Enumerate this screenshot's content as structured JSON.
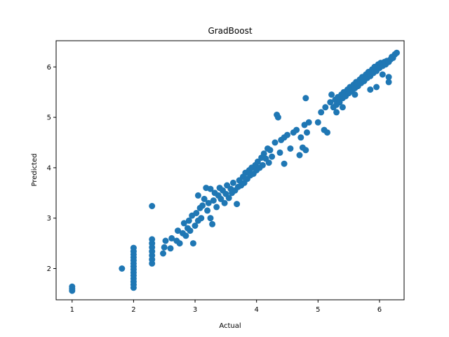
{
  "chart_data": {
    "type": "scatter",
    "title": "GradBoost",
    "xlabel": "Actual",
    "ylabel": "Predicted",
    "xlim": [
      0.74,
      6.4
    ],
    "ylim": [
      1.38,
      6.52
    ],
    "xticks": [
      1,
      2,
      3,
      4,
      5,
      6
    ],
    "yticks": [
      2,
      3,
      4,
      5,
      6
    ],
    "grid": false,
    "point_color": "#1f77b4",
    "series": [
      {
        "points": [
          [
            1.0,
            1.56
          ],
          [
            1.0,
            1.6
          ],
          [
            1.0,
            1.64
          ],
          [
            1.81,
            2.0
          ],
          [
            2.0,
            1.62
          ],
          [
            2.0,
            1.68
          ],
          [
            2.0,
            1.74
          ],
          [
            2.0,
            1.8
          ],
          [
            2.0,
            1.86
          ],
          [
            2.0,
            1.92
          ],
          [
            2.0,
            1.98
          ],
          [
            2.0,
            2.04
          ],
          [
            2.0,
            2.1
          ],
          [
            2.0,
            2.16
          ],
          [
            2.0,
            2.22
          ],
          [
            2.0,
            2.28
          ],
          [
            2.0,
            2.34
          ],
          [
            2.0,
            2.41
          ],
          [
            2.3,
            2.1
          ],
          [
            2.3,
            2.18
          ],
          [
            2.3,
            2.26
          ],
          [
            2.3,
            2.34
          ],
          [
            2.3,
            2.42
          ],
          [
            2.3,
            2.5
          ],
          [
            2.3,
            2.58
          ],
          [
            2.3,
            3.24
          ],
          [
            2.48,
            2.3
          ],
          [
            2.5,
            2.42
          ],
          [
            2.52,
            2.55
          ],
          [
            2.6,
            2.4
          ],
          [
            2.62,
            2.6
          ],
          [
            2.7,
            2.55
          ],
          [
            2.72,
            2.75
          ],
          [
            2.75,
            2.5
          ],
          [
            2.8,
            2.7
          ],
          [
            2.82,
            2.9
          ],
          [
            2.85,
            2.65
          ],
          [
            2.88,
            2.8
          ],
          [
            2.9,
            2.95
          ],
          [
            2.92,
            2.75
          ],
          [
            2.95,
            3.05
          ],
          [
            2.97,
            2.5
          ],
          [
            3.0,
            2.85
          ],
          [
            3.02,
            3.1
          ],
          [
            3.05,
            2.95
          ],
          [
            3.05,
            3.45
          ],
          [
            3.08,
            3.2
          ],
          [
            3.1,
            3.0
          ],
          [
            3.12,
            3.25
          ],
          [
            3.15,
            3.38
          ],
          [
            3.18,
            3.6
          ],
          [
            3.2,
            3.15
          ],
          [
            3.22,
            3.3
          ],
          [
            3.25,
            3.0
          ],
          [
            3.25,
            3.58
          ],
          [
            3.28,
            2.88
          ],
          [
            3.3,
            3.35
          ],
          [
            3.32,
            3.5
          ],
          [
            3.35,
            3.22
          ],
          [
            3.38,
            3.45
          ],
          [
            3.4,
            3.6
          ],
          [
            3.42,
            3.38
          ],
          [
            3.45,
            3.55
          ],
          [
            3.48,
            3.3
          ],
          [
            3.5,
            3.48
          ],
          [
            3.52,
            3.65
          ],
          [
            3.55,
            3.4
          ],
          [
            3.58,
            3.58
          ],
          [
            3.6,
            3.5
          ],
          [
            3.62,
            3.7
          ],
          [
            3.65,
            3.55
          ],
          [
            3.68,
            3.28
          ],
          [
            3.7,
            3.62
          ],
          [
            3.72,
            3.75
          ],
          [
            3.75,
            3.65
          ],
          [
            3.78,
            3.82
          ],
          [
            3.8,
            3.7
          ],
          [
            3.82,
            3.9
          ],
          [
            3.85,
            3.78
          ],
          [
            3.88,
            3.95
          ],
          [
            3.9,
            3.85
          ],
          [
            3.92,
            4.0
          ],
          [
            3.95,
            3.88
          ],
          [
            3.98,
            4.05
          ],
          [
            4.0,
            3.95
          ],
          [
            4.02,
            4.12
          ],
          [
            4.05,
            4.0
          ],
          [
            4.08,
            4.2
          ],
          [
            4.1,
            4.05
          ],
          [
            4.12,
            4.28
          ],
          [
            4.15,
            4.18
          ],
          [
            4.18,
            4.38
          ],
          [
            4.2,
            4.1
          ],
          [
            4.22,
            4.35
          ],
          [
            4.25,
            4.22
          ],
          [
            4.3,
            4.5
          ],
          [
            4.33,
            5.05
          ],
          [
            4.35,
            5.0
          ],
          [
            4.38,
            4.3
          ],
          [
            4.4,
            4.55
          ],
          [
            4.45,
            4.08
          ],
          [
            4.45,
            4.6
          ],
          [
            4.5,
            4.65
          ],
          [
            4.55,
            4.38
          ],
          [
            4.6,
            4.7
          ],
          [
            4.65,
            4.75
          ],
          [
            4.7,
            4.25
          ],
          [
            4.72,
            4.6
          ],
          [
            4.75,
            4.4
          ],
          [
            4.78,
            4.85
          ],
          [
            4.8,
            5.38
          ],
          [
            4.8,
            4.35
          ],
          [
            4.82,
            4.7
          ],
          [
            4.85,
            4.9
          ],
          [
            5.0,
            4.9
          ],
          [
            5.05,
            5.1
          ],
          [
            5.1,
            4.75
          ],
          [
            5.12,
            5.2
          ],
          [
            5.15,
            4.7
          ],
          [
            5.2,
            5.3
          ],
          [
            5.22,
            5.45
          ],
          [
            5.25,
            5.2
          ],
          [
            5.28,
            5.35
          ],
          [
            5.3,
            5.25
          ],
          [
            5.32,
            5.4
          ],
          [
            5.35,
            5.3
          ],
          [
            5.38,
            5.45
          ],
          [
            5.4,
            5.38
          ],
          [
            5.42,
            5.5
          ],
          [
            5.45,
            5.42
          ],
          [
            5.48,
            5.55
          ],
          [
            5.5,
            5.48
          ],
          [
            5.52,
            5.6
          ],
          [
            5.55,
            5.52
          ],
          [
            5.58,
            5.65
          ],
          [
            5.6,
            5.58
          ],
          [
            5.62,
            5.7
          ],
          [
            5.65,
            5.62
          ],
          [
            5.68,
            5.75
          ],
          [
            5.7,
            5.68
          ],
          [
            5.72,
            5.8
          ],
          [
            5.75,
            5.72
          ],
          [
            5.78,
            5.85
          ],
          [
            5.8,
            5.78
          ],
          [
            5.82,
            5.9
          ],
          [
            5.85,
            5.82
          ],
          [
            5.88,
            5.95
          ],
          [
            5.9,
            5.88
          ],
          [
            5.92,
            6.0
          ],
          [
            5.95,
            5.92
          ],
          [
            5.98,
            6.05
          ],
          [
            6.0,
            5.98
          ],
          [
            6.02,
            6.08
          ],
          [
            6.05,
            6.02
          ],
          [
            6.08,
            6.1
          ],
          [
            6.1,
            6.05
          ],
          [
            6.12,
            6.12
          ],
          [
            6.15,
            6.1
          ],
          [
            6.18,
            6.15
          ],
          [
            6.2,
            6.2
          ],
          [
            6.22,
            6.18
          ],
          [
            6.25,
            6.25
          ],
          [
            6.28,
            6.28
          ],
          [
            5.95,
            5.6
          ],
          [
            6.05,
            5.85
          ],
          [
            6.15,
            5.7
          ],
          [
            6.15,
            5.8
          ],
          [
            5.85,
            5.55
          ],
          [
            5.6,
            5.45
          ],
          [
            5.4,
            5.2
          ],
          [
            5.3,
            5.1
          ]
        ]
      }
    ]
  }
}
